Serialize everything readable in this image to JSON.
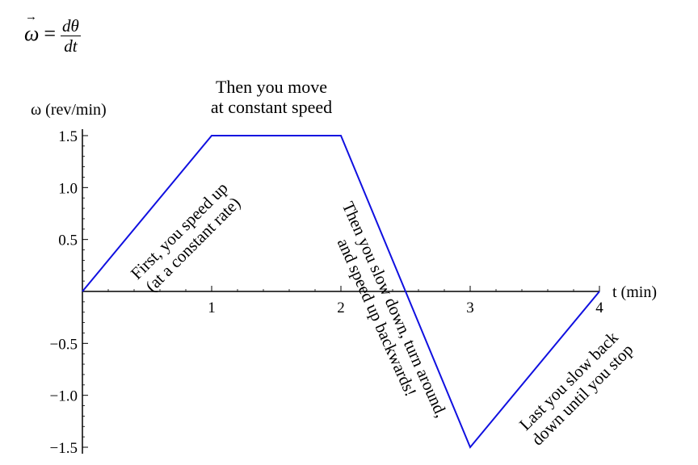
{
  "formula": {
    "lhs": "ω",
    "equals": "=",
    "numerator": "dθ",
    "denominator": "dt"
  },
  "chart_data": {
    "type": "line",
    "xlabel": "t (min)",
    "ylabel": "ω (rev/min)",
    "xlim": [
      0,
      4
    ],
    "ylim": [
      -1.5,
      1.5
    ],
    "x_ticks": [
      1,
      2,
      3,
      4
    ],
    "x_tick_labels": [
      "1",
      "2",
      "3",
      "4"
    ],
    "y_ticks": [
      1.5,
      1.0,
      0.5,
      -0.5,
      -1.0,
      -1.5
    ],
    "y_tick_labels": [
      "1.5",
      "1.0",
      "0.5",
      "−0.5",
      "−1.0",
      "−1.5"
    ],
    "grid": false,
    "series": [
      {
        "x": [
          0,
          1,
          2,
          3,
          4
        ],
        "y": [
          0,
          1.5,
          1.5,
          -1.5,
          0
        ],
        "color": "#1010e0"
      }
    ],
    "annotations": [
      {
        "id": "speed-up",
        "lines": [
          "First, you speed up",
          "(at a constant rate)"
        ]
      },
      {
        "id": "constant",
        "lines": [
          "Then you move",
          "at constant speed"
        ]
      },
      {
        "id": "slow-turn",
        "lines": [
          "Then you slow down, turn around,",
          "and speed up backwards!"
        ]
      },
      {
        "id": "slow-back",
        "lines": [
          "Last you slow back",
          "down until you stop"
        ]
      }
    ]
  }
}
